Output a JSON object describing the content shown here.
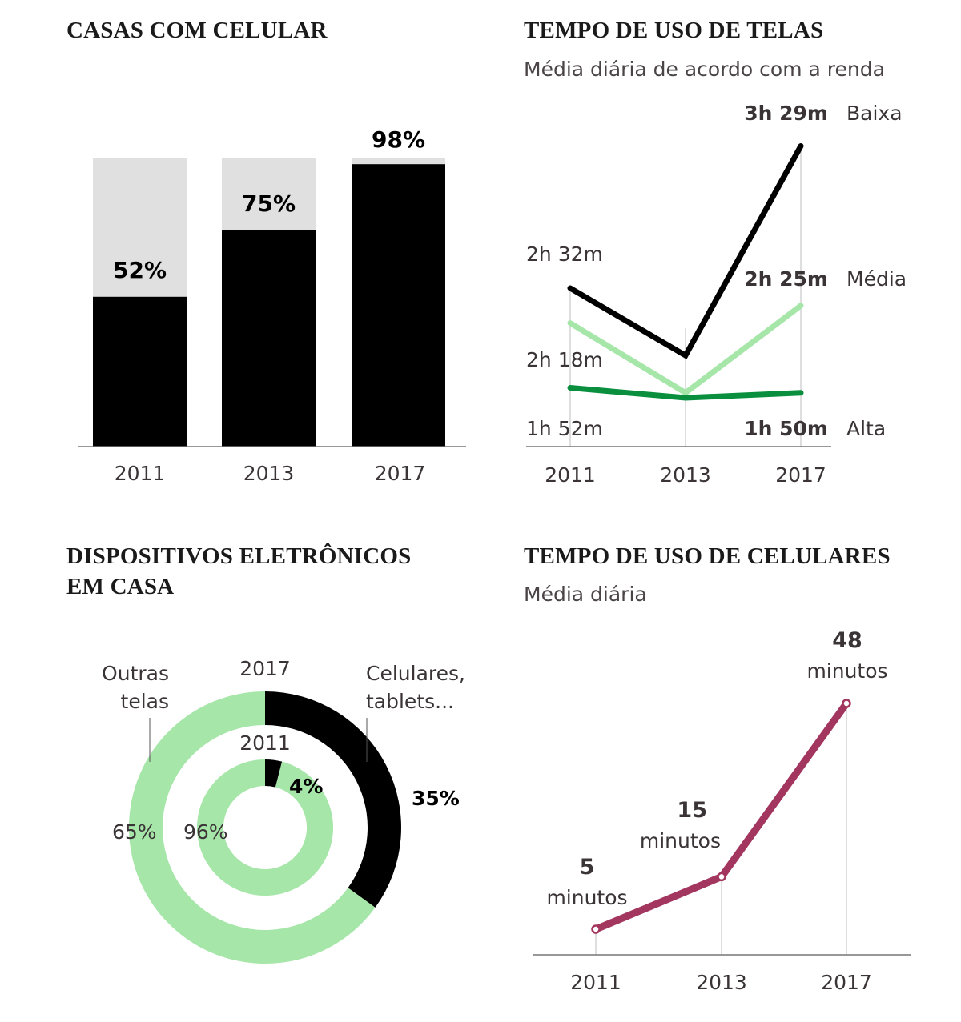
{
  "chart_data": [
    {
      "id": "casas",
      "type": "bar",
      "title": "CASAS COM CELULAR",
      "categories": [
        "2011",
        "2013",
        "2017"
      ],
      "values": [
        52,
        75,
        98
      ],
      "labels": [
        "52%",
        "75%",
        "98%"
      ],
      "ylim": [
        0,
        100
      ],
      "xlabel": "",
      "ylabel": "",
      "grid": false,
      "colors": {
        "bar": "#000000",
        "background": "#e0e0e0"
      }
    },
    {
      "id": "telas",
      "type": "line",
      "title": "TEMPO DE USO DE TELAS",
      "subtitle": "Média diária de acordo com a renda",
      "categories": [
        "2011",
        "2013",
        "2017"
      ],
      "ylim_minutes": [
        60,
        230
      ],
      "series": [
        {
          "name": "Baixa",
          "values_minutes": [
            152,
            125,
            209
          ],
          "start_label": "2h 32m",
          "end_label": "3h 29m",
          "color": "#000000"
        },
        {
          "name": "Média",
          "values_minutes": [
            138,
            110,
            145
          ],
          "start_label": "2h 18m",
          "end_label": "2h 25m",
          "color": "#a6e6a8"
        },
        {
          "name": "Alta",
          "values_minutes": [
            112,
            108,
            110
          ],
          "start_label": "1h 52m",
          "end_label": "1h 50m",
          "color": "#0a8f3e"
        }
      ],
      "grid": false
    },
    {
      "id": "dispositivos",
      "type": "pie",
      "title_lines": [
        "DISPOSITIVOS ELETRÔNICOS",
        "EM CASA"
      ],
      "rings": [
        {
          "year": "2017",
          "slices": [
            {
              "name": "Celulares, tablets...",
              "value": 35,
              "label": "35%"
            },
            {
              "name": "Outras telas",
              "value": 65,
              "label": "65%"
            }
          ]
        },
        {
          "year": "2011",
          "slices": [
            {
              "name": "Celulares, tablets...",
              "value": 4,
              "label": "4%"
            },
            {
              "name": "Outras telas",
              "value": 96,
              "label": "96%"
            }
          ]
        }
      ],
      "legend": [
        {
          "name": "Outras telas",
          "lines": [
            "Outras",
            "telas"
          ]
        },
        {
          "name": "Celulares, tablets...",
          "lines": [
            "Celulares,",
            "tablets..."
          ]
        }
      ],
      "colors": {
        "Celulares, tablets...": "#000000",
        "Outras telas": "#a6e6a8"
      }
    },
    {
      "id": "celulares",
      "type": "line",
      "title": "TEMPO DE USO DE CELULARES",
      "subtitle": "Média diária",
      "categories": [
        "2011",
        "2013",
        "2017"
      ],
      "ylim": [
        0,
        55
      ],
      "series": [
        {
          "name": "Tempo de uso",
          "values": [
            5,
            15,
            48
          ],
          "unit": "minutos",
          "color": "#a3365f"
        }
      ],
      "grid": false
    }
  ]
}
